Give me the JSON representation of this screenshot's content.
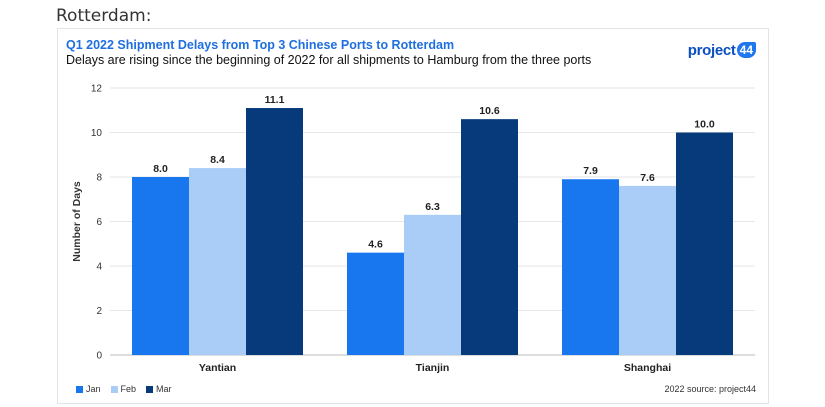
{
  "page": {
    "heading": "Rotterdam:"
  },
  "brand": {
    "text": "project",
    "badge": "44"
  },
  "source": "2022 source: project44",
  "colors": {
    "Jan": "#1877ee",
    "Feb": "#a9cdf7",
    "Mar": "#063a7a",
    "title": "#1f6fe0"
  },
  "chart_data": {
    "type": "bar",
    "title": "Q1 2022 Shipment Delays from Top 3 Chinese Ports to Rotterdam",
    "subtitle": "Delays are rising since the beginning of 2022 for all shipments to Hamburg from the three ports",
    "xlabel": "",
    "ylabel": "Number of Days",
    "ylim": [
      0,
      12
    ],
    "yticks": [
      "0",
      "2",
      "4",
      "6",
      "8",
      "10",
      "12"
    ],
    "categories": [
      "Yantian",
      "Tianjin",
      "Shanghai"
    ],
    "series": [
      {
        "name": "Jan",
        "values": [
          8.0,
          4.6,
          7.9
        ],
        "labels": [
          "8.0",
          "4.6",
          "7.9"
        ]
      },
      {
        "name": "Feb",
        "values": [
          8.4,
          6.3,
          7.6
        ],
        "labels": [
          "8.4",
          "6.3",
          "7.6"
        ]
      },
      {
        "name": "Mar",
        "values": [
          11.1,
          10.6,
          10.0
        ],
        "labels": [
          "11.1",
          "10.6",
          "10.0"
        ]
      }
    ],
    "grid": true,
    "legend_position": "bottom-left"
  }
}
